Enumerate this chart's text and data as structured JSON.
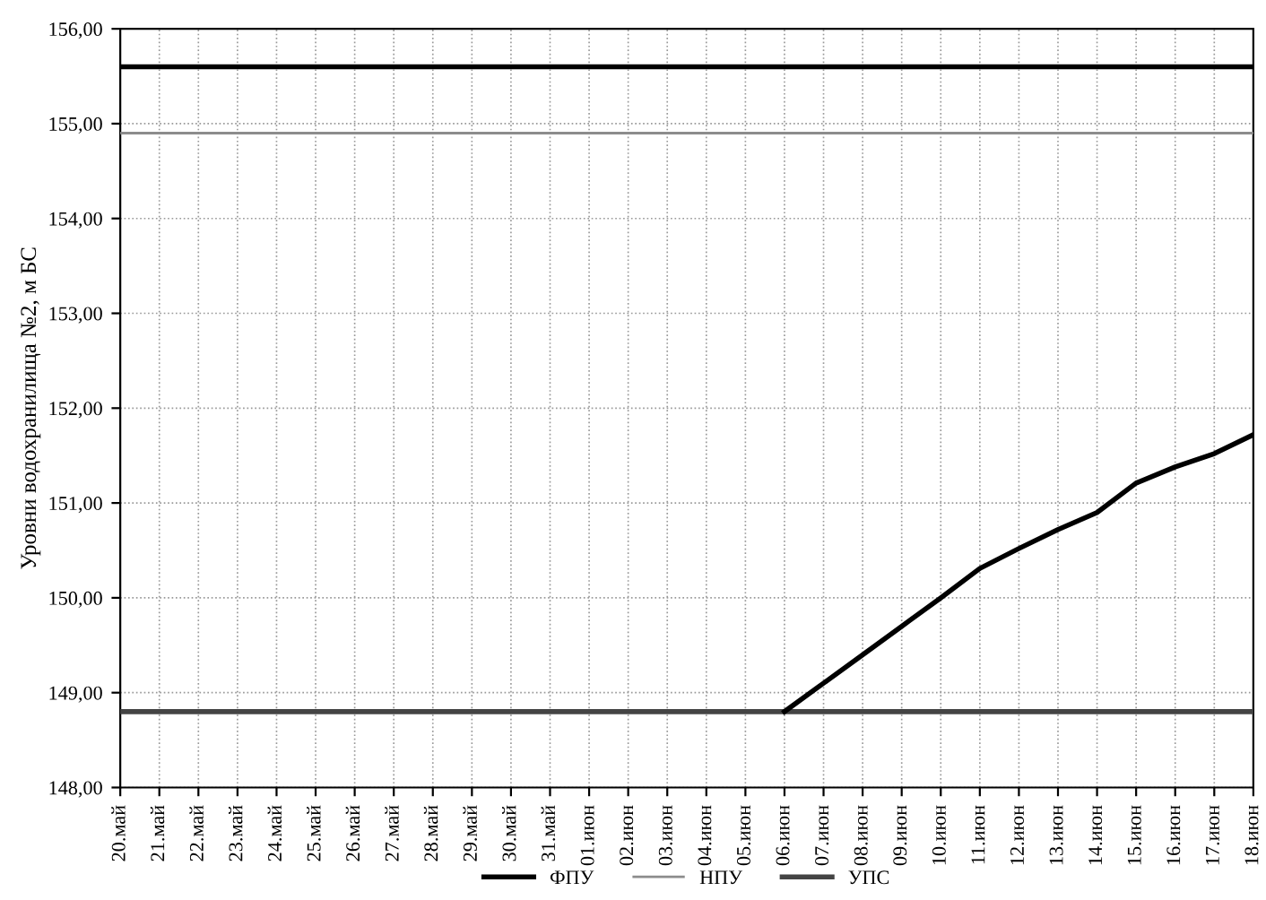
{
  "chart_data": {
    "type": "line",
    "ylabel": "Уровни водохранилища №2, м БС",
    "categories": [
      "20.май",
      "21.май",
      "22.май",
      "23.май",
      "24.май",
      "25.май",
      "26.май",
      "27.май",
      "28.май",
      "29.май",
      "30.май",
      "31.май",
      "01.июн",
      "02.июн",
      "03.июн",
      "04.июн",
      "05.июн",
      "06.июн",
      "07.июн",
      "08.июн",
      "09.июн",
      "10.июн",
      "11.июн",
      "12.июн",
      "13.июн",
      "14.июн",
      "15.июн",
      "16.июн",
      "17.июн",
      "18.июн"
    ],
    "series": [
      {
        "name": "ФПУ",
        "color": "#000000",
        "values": [
          155.6,
          155.6,
          155.6,
          155.6,
          155.6,
          155.6,
          155.6,
          155.6,
          155.6,
          155.6,
          155.6,
          155.6,
          155.6,
          155.6,
          155.6,
          155.6,
          155.6,
          155.6,
          155.6,
          155.6,
          155.6,
          155.6,
          155.6,
          155.6,
          155.6,
          155.6,
          155.6,
          155.6,
          155.6,
          155.6
        ]
      },
      {
        "name": "НПУ",
        "color": "#8c8c8c",
        "values": [
          154.9,
          154.9,
          154.9,
          154.9,
          154.9,
          154.9,
          154.9,
          154.9,
          154.9,
          154.9,
          154.9,
          154.9,
          154.9,
          154.9,
          154.9,
          154.9,
          154.9,
          154.9,
          154.9,
          154.9,
          154.9,
          154.9,
          154.9,
          154.9,
          154.9,
          154.9,
          154.9,
          154.9,
          154.9,
          154.9
        ]
      },
      {
        "name": "УПС",
        "color": "#444444",
        "values": [
          148.8,
          148.8,
          148.8,
          148.8,
          148.8,
          148.8,
          148.8,
          148.8,
          148.8,
          148.8,
          148.8,
          148.8,
          148.8,
          148.8,
          148.8,
          148.8,
          148.8,
          148.8,
          148.8,
          148.8,
          148.8,
          148.8,
          148.8,
          148.8,
          148.8,
          148.8,
          148.8,
          148.8,
          148.8,
          148.8
        ]
      },
      {
        "color": "#000000",
        "values": [
          null,
          null,
          null,
          null,
          null,
          null,
          null,
          null,
          null,
          null,
          null,
          null,
          null,
          null,
          null,
          null,
          null,
          148.8,
          149.1,
          149.4,
          149.7,
          150.0,
          150.31,
          150.52,
          150.72,
          150.9,
          151.21,
          151.38,
          151.52,
          151.72
        ]
      }
    ],
    "ylim": [
      148,
      156
    ],
    "yticks": [
      {
        "value": 148,
        "label": "148,00"
      },
      {
        "value": 149,
        "label": "149,00"
      },
      {
        "value": 150,
        "label": "150,00"
      },
      {
        "value": 151,
        "label": "151,00"
      },
      {
        "value": 152,
        "label": "152,00"
      },
      {
        "value": 153,
        "label": "153,00"
      },
      {
        "value": 154,
        "label": "154,00"
      },
      {
        "value": 155,
        "label": "155,00"
      },
      {
        "value": 156,
        "label": "156,00"
      }
    ],
    "grid": true,
    "legend": "bottom",
    "marker": "none",
    "line_style": "solid"
  }
}
